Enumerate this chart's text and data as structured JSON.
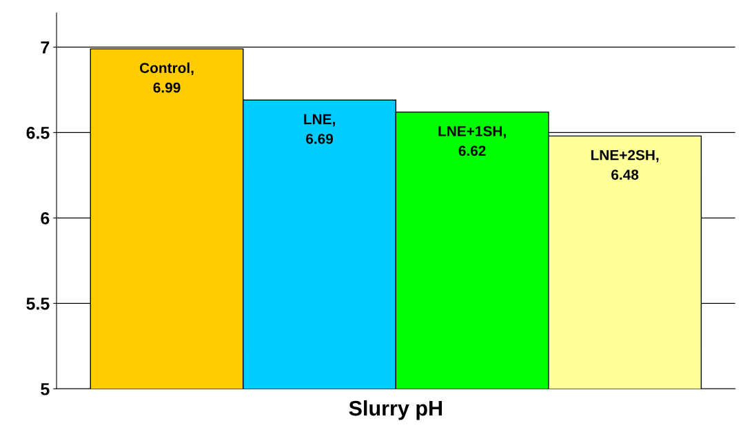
{
  "chart_data": {
    "type": "bar",
    "categories": [
      "Slurry pH"
    ],
    "series": [
      {
        "color": "#ffcc00",
        "values": [
          6.99
        ],
        "value_labels": [
          "Control,\n6.99"
        ]
      },
      {
        "color": "#00ccff",
        "values": [
          6.69
        ],
        "value_labels": [
          "LNE,\n6.69"
        ]
      },
      {
        "color": "#00ff00",
        "values": [
          6.62
        ],
        "value_labels": [
          "LNE+1SH,\n6.62"
        ]
      },
      {
        "color": "#ffff99",
        "values": [
          6.48
        ],
        "value_labels": [
          "LNE+2SH,\n6.48"
        ]
      }
    ],
    "ylim": [
      5,
      7.2
    ],
    "yticks": [
      5,
      5.5,
      6,
      6.5,
      7
    ],
    "grid": "y",
    "legend": false
  }
}
